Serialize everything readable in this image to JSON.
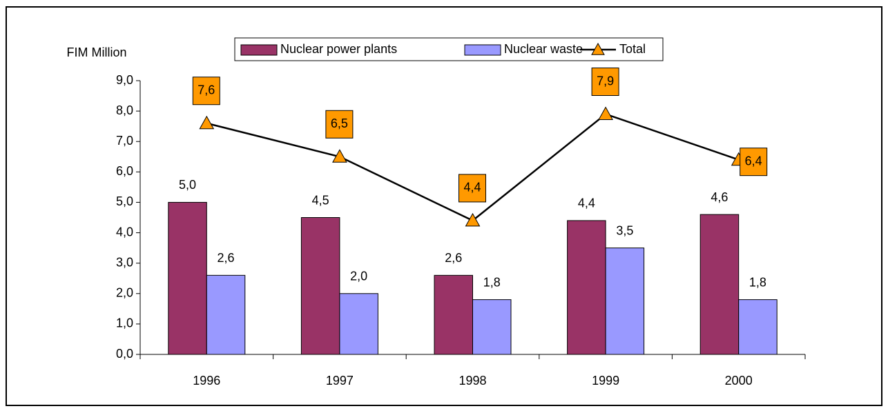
{
  "chart_data": {
    "type": "bar+line",
    "y_label": "FIM Million",
    "categories": [
      "1996",
      "1997",
      "1998",
      "1999",
      "2000"
    ],
    "series": [
      {
        "name": "Nuclear power plants",
        "type": "bar",
        "color": "#993366",
        "values": [
          5.0,
          4.5,
          2.6,
          4.4,
          4.6
        ],
        "value_labels": [
          "5,0",
          "4,5",
          "2,6",
          "4,4",
          "4,6"
        ]
      },
      {
        "name": "Nuclear waste",
        "type": "bar",
        "color": "#9999ff",
        "values": [
          2.6,
          2.0,
          1.8,
          3.5,
          1.8
        ],
        "value_labels": [
          "2,6",
          "2,0",
          "1,8",
          "3,5",
          "1,8"
        ]
      },
      {
        "name": "Total",
        "type": "line",
        "color": "#000000",
        "marker_color": "#ff9900",
        "values": [
          7.6,
          6.5,
          4.4,
          7.9,
          6.4
        ],
        "value_labels": [
          "7,6",
          "6,5",
          "4,4",
          "7,9",
          "6,4"
        ]
      }
    ],
    "ylim": [
      0,
      9
    ],
    "yticks": [
      {
        "value": 0,
        "label": "0,0"
      },
      {
        "value": 1,
        "label": "1,0"
      },
      {
        "value": 2,
        "label": "2,0"
      },
      {
        "value": 3,
        "label": "3,0"
      },
      {
        "value": 4,
        "label": "4,0"
      },
      {
        "value": 5,
        "label": "5,0"
      },
      {
        "value": 6,
        "label": "6,0"
      },
      {
        "value": 7,
        "label": "7,0"
      },
      {
        "value": 8,
        "label": "8,0"
      },
      {
        "value": 9,
        "label": "9,0"
      }
    ],
    "legend": "top"
  }
}
